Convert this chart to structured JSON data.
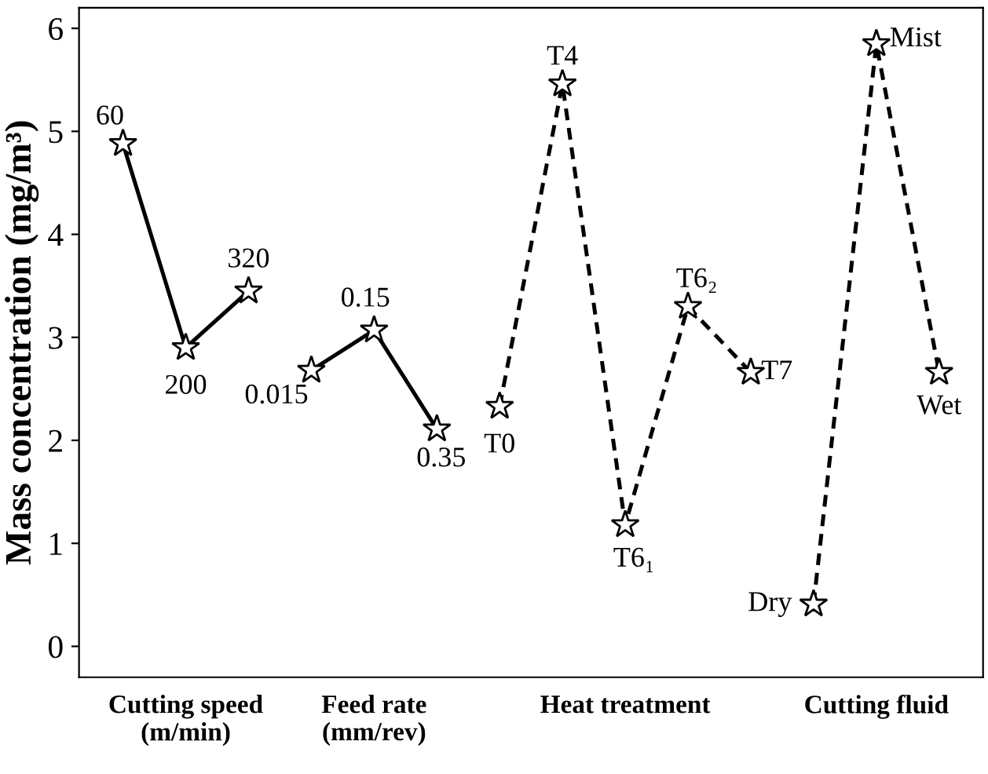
{
  "chart_data": {
    "type": "line",
    "ylabel": "Mass concentration (mg/m³)",
    "ylim": [
      -0.3,
      6.2
    ],
    "yticks": [
      0,
      1,
      2,
      3,
      4,
      5,
      6
    ],
    "categories": [
      null,
      "Cutting speed\n(m/min)",
      null,
      null,
      "Feed rate\n(mm/rev)",
      null,
      null,
      null,
      "Heat treatment",
      null,
      null,
      null,
      "Cutting fluid",
      null
    ],
    "marker": "star",
    "grid": false,
    "series": [
      {
        "color": "#000000",
        "line_style": "solid",
        "values": [
          4.88,
          2.9,
          3.45,
          null,
          null,
          null,
          null,
          null,
          null,
          null,
          null,
          null,
          null,
          null
        ]
      },
      {
        "color": "#000000",
        "line_style": "solid",
        "values": [
          null,
          null,
          null,
          2.68,
          3.07,
          2.11,
          null,
          null,
          null,
          null,
          null,
          null,
          null,
          null
        ]
      },
      {
        "color": "#000000",
        "line_style": "dashed",
        "values": [
          null,
          null,
          null,
          null,
          null,
          null,
          2.33,
          5.46,
          1.18,
          3.3,
          2.66,
          null,
          null,
          null
        ]
      },
      {
        "color": "#000000",
        "line_style": "dashed",
        "values": [
          null,
          null,
          null,
          null,
          null,
          null,
          null,
          null,
          null,
          null,
          null,
          0.41,
          5.85,
          2.66
        ]
      }
    ],
    "annotations": [
      "60",
      "200",
      "320",
      "0.015",
      "0.15",
      "0.35",
      "T0",
      "T4",
      "T6₁",
      "T6₂",
      "T7",
      "Dry",
      "Mist",
      "Wet"
    ]
  }
}
